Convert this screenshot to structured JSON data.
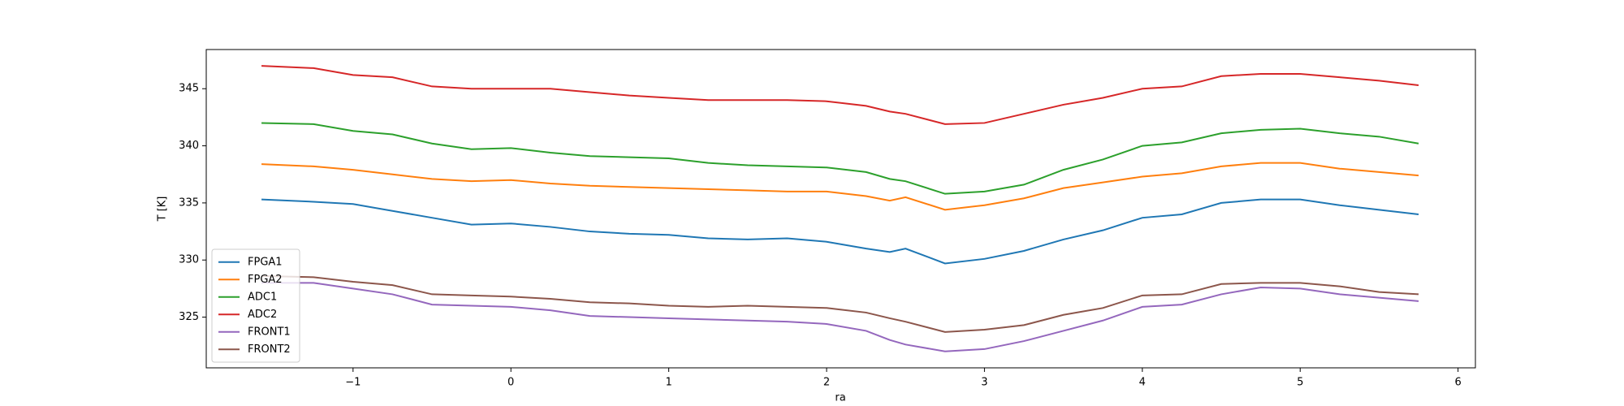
{
  "chart_data": {
    "type": "line",
    "xlabel": "ra",
    "ylabel": "T [K]",
    "x": [
      -1.58,
      -1.25,
      -1,
      -0.75,
      -0.5,
      -0.25,
      0,
      0.25,
      0.5,
      0.75,
      1,
      1.25,
      1.5,
      1.75,
      2,
      2.25,
      2.4,
      2.5,
      2.75,
      3,
      3.25,
      3.5,
      3.75,
      4,
      4.25,
      4.5,
      4.75,
      5,
      5.25,
      5.5,
      5.75
    ],
    "series": [
      {
        "name": "FPGA1",
        "color": "#1f77b4",
        "values": [
          335.3,
          335.1,
          334.9,
          334.3,
          333.7,
          333.1,
          333.2,
          332.9,
          332.5,
          332.3,
          332.2,
          331.9,
          331.8,
          331.9,
          331.6,
          331.0,
          330.7,
          331.0,
          329.7,
          330.1,
          330.8,
          331.8,
          332.6,
          333.7,
          334.0,
          335.0,
          335.3,
          335.3,
          334.8,
          334.4,
          334.0
        ]
      },
      {
        "name": "FPGA2",
        "color": "#ff7f0e",
        "values": [
          338.4,
          338.2,
          337.9,
          337.5,
          337.1,
          336.9,
          337.0,
          336.7,
          336.5,
          336.4,
          336.3,
          336.2,
          336.1,
          336.0,
          336.0,
          335.6,
          335.2,
          335.5,
          334.4,
          334.8,
          335.4,
          336.3,
          336.8,
          337.3,
          337.6,
          338.2,
          338.5,
          338.5,
          338.0,
          337.7,
          337.4
        ]
      },
      {
        "name": "ADC1",
        "color": "#2ca02c",
        "values": [
          342.0,
          341.9,
          341.3,
          341.0,
          340.2,
          339.7,
          339.8,
          339.4,
          339.1,
          339.0,
          338.9,
          338.5,
          338.3,
          338.2,
          338.1,
          337.7,
          337.1,
          336.9,
          335.8,
          336.0,
          336.6,
          337.9,
          338.8,
          340.0,
          340.3,
          341.1,
          341.4,
          341.5,
          341.1,
          340.8,
          340.2
        ]
      },
      {
        "name": "ADC2",
        "color": "#d62728",
        "values": [
          347.0,
          346.8,
          346.2,
          346.0,
          345.2,
          345.0,
          345.0,
          345.0,
          344.7,
          344.4,
          344.2,
          344.0,
          344.0,
          344.0,
          343.9,
          343.5,
          343.0,
          342.8,
          341.9,
          342.0,
          342.8,
          343.6,
          344.2,
          345.0,
          345.2,
          346.1,
          346.3,
          346.3,
          346.0,
          345.7,
          345.3
        ]
      },
      {
        "name": "FRONT1",
        "color": "#9467bd",
        "values": [
          328.0,
          328.0,
          327.5,
          327.0,
          326.1,
          326.0,
          325.9,
          325.6,
          325.1,
          325.0,
          324.9,
          324.8,
          324.7,
          324.6,
          324.4,
          323.8,
          323.0,
          322.6,
          322.0,
          322.2,
          322.9,
          323.8,
          324.7,
          325.9,
          326.1,
          327.0,
          327.6,
          327.5,
          327.0,
          326.7,
          326.4
        ]
      },
      {
        "name": "FRONT2",
        "color": "#8c564b",
        "values": [
          328.6,
          328.5,
          328.1,
          327.8,
          327.0,
          326.9,
          326.8,
          326.6,
          326.3,
          326.2,
          326.0,
          325.9,
          326.0,
          325.9,
          325.8,
          325.4,
          324.9,
          324.6,
          323.7,
          323.9,
          324.3,
          325.2,
          325.8,
          326.9,
          327.0,
          327.9,
          328.0,
          328.0,
          327.7,
          327.2,
          327.0
        ]
      }
    ],
    "xlim": [
      -1.93,
      6.11
    ],
    "xticks": [
      {
        "value": -1,
        "label": "−1"
      },
      0,
      1,
      2,
      3,
      4,
      5,
      6
    ],
    "ylim": [
      320.56,
      348.43
    ],
    "yticks": [
      325,
      330,
      335,
      340,
      345
    ],
    "grid": false,
    "legend": "lower left"
  }
}
